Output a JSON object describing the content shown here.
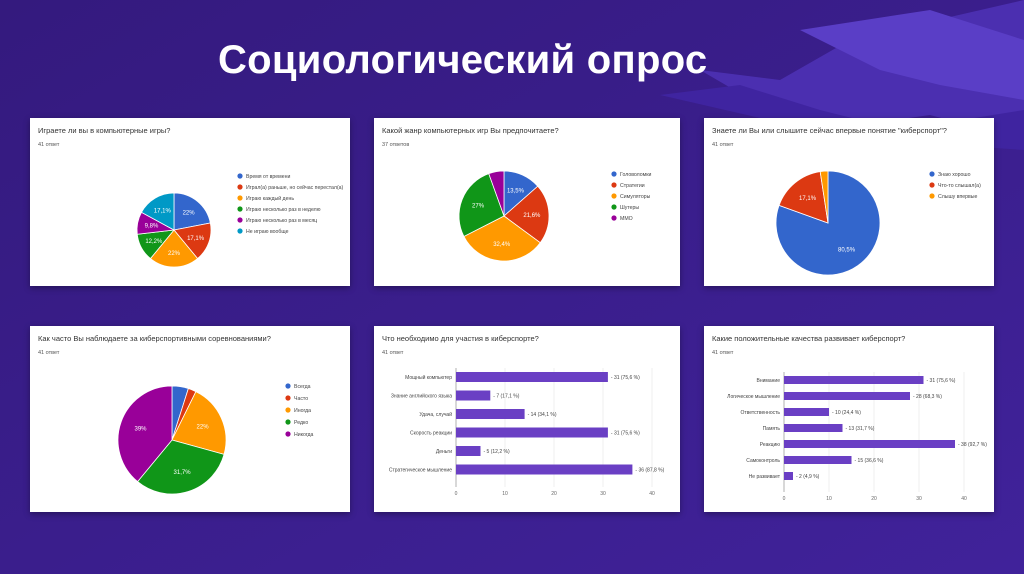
{
  "slide": {
    "title": "Социологический опрос"
  },
  "chart_data": [
    {
      "type": "pie",
      "title": "Играете ли вы в компьютерные игры?",
      "count": "41 ответ",
      "legend_placement": "right",
      "series": [
        {
          "name": "Время от времени",
          "value": 22,
          "label": "22%",
          "color": "#3366cc"
        },
        {
          "name": "Играл(а) раньше, но сейчас перестал(а)",
          "value": 17.1,
          "label": "17,1%",
          "color": "#dc3912"
        },
        {
          "name": "Играю каждый день",
          "value": 22,
          "label": "22%",
          "color": "#ff9900"
        },
        {
          "name": "Играю несколько раз в неделю",
          "value": 12.2,
          "label": "12,2%",
          "color": "#109618"
        },
        {
          "name": "Играю несколько раз в месяц",
          "value": 9.8,
          "label": "9,8%",
          "color": "#990099"
        },
        {
          "name": "Не играю вообще",
          "value": 17.1,
          "label": "17,1%",
          "color": "#0099c6"
        }
      ]
    },
    {
      "type": "pie",
      "title": "Какой жанр компьютерных игр Вы предпочитаете?",
      "count": "37 ответов",
      "legend_placement": "right",
      "series": [
        {
          "name": "Головоломки",
          "value": 13.5,
          "label": "13,5%",
          "color": "#3366cc"
        },
        {
          "name": "Стратегии",
          "value": 21.6,
          "label": "21,6%",
          "color": "#dc3912"
        },
        {
          "name": "Симуляторы",
          "value": 32.4,
          "label": "32,4%",
          "color": "#ff9900"
        },
        {
          "name": "Шутеры",
          "value": 27,
          "label": "27%",
          "color": "#109618"
        },
        {
          "name": "ММО",
          "value": 5.5,
          "label": "",
          "color": "#990099"
        }
      ]
    },
    {
      "type": "pie",
      "title": "Знаете ли Вы или слышите сейчас впервые понятие \"киберспорт\"?",
      "count": "41 ответ",
      "legend_placement": "right",
      "series": [
        {
          "name": "Знаю хорошо",
          "value": 80.5,
          "label": "80,5%",
          "color": "#3366cc"
        },
        {
          "name": "Что-то слышал(а)",
          "value": 17.1,
          "label": "17,1%",
          "color": "#dc3912"
        },
        {
          "name": "Слышу впервые",
          "value": 2.4,
          "label": "",
          "color": "#ff9900"
        }
      ]
    },
    {
      "type": "pie",
      "title": "Как часто Вы наблюдаете за киберспортивными соревнованиями?",
      "count": "41 ответ",
      "legend_placement": "right",
      "series": [
        {
          "name": "Всегда",
          "value": 4.9,
          "label": "",
          "color": "#3366cc"
        },
        {
          "name": "Часто",
          "value": 2.4,
          "label": "",
          "color": "#dc3912"
        },
        {
          "name": "Иногда",
          "value": 22,
          "label": "22%",
          "color": "#ff9900"
        },
        {
          "name": "Редко",
          "value": 31.7,
          "label": "31,7%",
          "color": "#109618"
        },
        {
          "name": "Никогда",
          "value": 39,
          "label": "39%",
          "color": "#990099"
        }
      ]
    },
    {
      "type": "bar",
      "orientation": "horizontal",
      "title": "Что необходимо для участия в киберспорте?",
      "count": "41 ответ",
      "xlim": [
        0,
        40
      ],
      "ticks": [
        0,
        10,
        20,
        30,
        40
      ],
      "color": "#6a3fc4",
      "categories": [
        "Мощный компьютер",
        "Знание английского языка",
        "Удача, случай",
        "Скорость реакции",
        "Деньги",
        "Стратегическое мышление"
      ],
      "values": [
        31,
        7,
        14,
        31,
        5,
        36
      ],
      "value_labels": [
        "31 (75,6 %)",
        "7 (17,1 %)",
        "14 (34,1 %)",
        "31 (75,6 %)",
        "5 (12,2 %)",
        "36 (87,8 %)"
      ]
    },
    {
      "type": "bar",
      "orientation": "horizontal",
      "title": "Какие положительные качества развивает киберспорт?",
      "count": "41 ответ",
      "xlim": [
        0,
        40
      ],
      "ticks": [
        0,
        10,
        20,
        30,
        40
      ],
      "color": "#6a3fc4",
      "categories": [
        "Внимание",
        "Логическое мышление",
        "Ответственность",
        "Память",
        "Реакцию",
        "Самоконтроль",
        "Не развивает"
      ],
      "values": [
        31,
        28,
        10,
        13,
        38,
        15,
        2
      ],
      "value_labels": [
        "31 (75,6 %)",
        "28 (68,3 %)",
        "10 (24,4 %)",
        "13 (31,7 %)",
        "38 (92,7 %)",
        "15 (36,6 %)",
        "2 (4,9 %)"
      ]
    }
  ]
}
